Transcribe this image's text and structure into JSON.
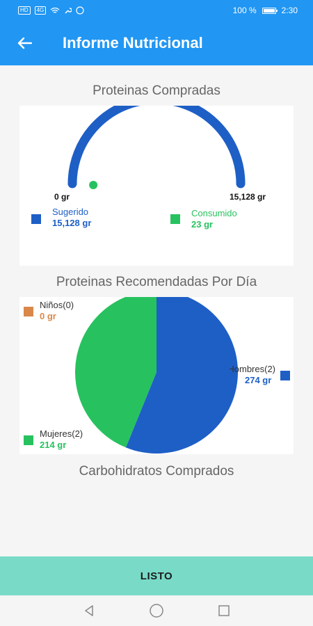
{
  "status_bar": {
    "badge1": "HD",
    "badge2": "4G",
    "battery_text": "100 %",
    "time": "2:30"
  },
  "app_bar": {
    "title": "Informe Nutricional",
    "back_icon": "arrow-left-icon"
  },
  "proteins_bought": {
    "title": "Proteinas Compradas",
    "gauge_min_label": "0 gr",
    "gauge_max_label": "15,128 gr",
    "legend": [
      {
        "name": "Sugerido",
        "value": "15,128 gr",
        "color": "#1e5fc6"
      },
      {
        "name": "Consumido",
        "value": "23 gr",
        "color": "#27c25f"
      }
    ]
  },
  "proteins_recommended": {
    "title": "Proteinas Recomendadas Por Día",
    "legend": [
      {
        "name": "Niños(0)",
        "value": "0 gr",
        "color": "#d9884a"
      },
      {
        "name": "Hombres(2)",
        "value": "274 gr",
        "color": "#1e5fc6"
      },
      {
        "name": "Mujeres(2)",
        "value": "214 gr",
        "color": "#27c25f"
      }
    ]
  },
  "carbs_bought": {
    "title": "Carbohidratos Comprados"
  },
  "footer": {
    "done_label": "LISTO"
  },
  "chart_data": [
    {
      "type": "gauge",
      "title": "Proteinas Compradas",
      "min": 0,
      "max": 15128,
      "unit": "gr",
      "series": [
        {
          "name": "Sugerido",
          "value": 15128
        },
        {
          "name": "Consumido",
          "value": 23
        }
      ]
    },
    {
      "type": "pie",
      "title": "Proteinas Recomendadas Por Día",
      "categories": [
        "Niños(0)",
        "Hombres(2)",
        "Mujeres(2)"
      ],
      "values": [
        0,
        274,
        214
      ],
      "unit": "gr"
    }
  ]
}
